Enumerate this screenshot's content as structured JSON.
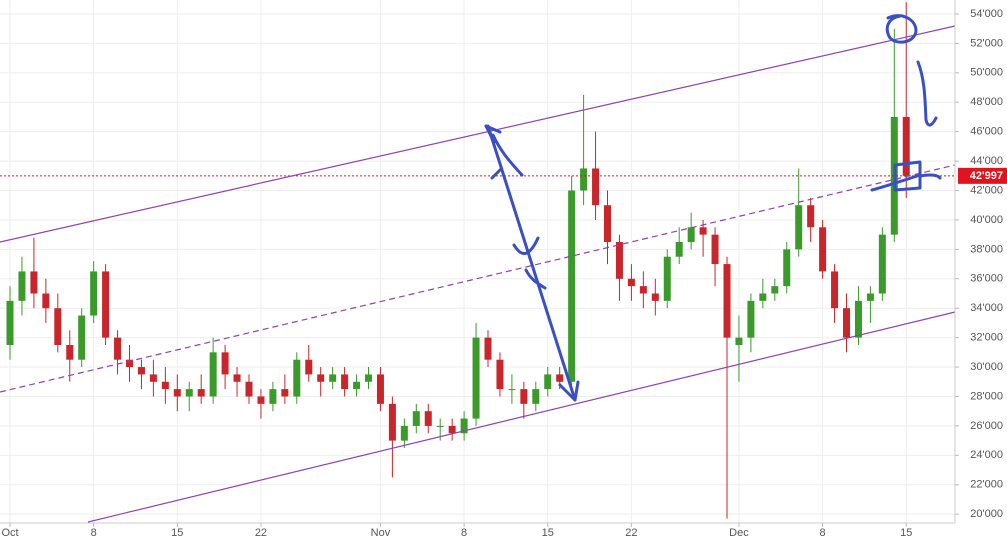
{
  "chart_data": {
    "type": "candlestick",
    "x": [
      "Oct 1",
      "Oct 2",
      "Oct 3",
      "Oct 4",
      "Oct 5",
      "Oct 6",
      "Oct 7",
      "Oct 8",
      "Oct 9",
      "Oct 10",
      "Oct 11",
      "Oct 12",
      "Oct 13",
      "Oct 14",
      "Oct 15",
      "Oct 16",
      "Oct 17",
      "Oct 18",
      "Oct 19",
      "Oct 20",
      "Oct 21",
      "Oct 22",
      "Oct 23",
      "Oct 24",
      "Oct 25",
      "Oct 26",
      "Oct 27",
      "Oct 28",
      "Oct 29",
      "Oct 30",
      "Oct 31",
      "Nov 1",
      "Nov 2",
      "Nov 3",
      "Nov 4",
      "Nov 5",
      "Nov 6",
      "Nov 7",
      "Nov 8",
      "Nov 9",
      "Nov 10",
      "Nov 11",
      "Nov 12",
      "Nov 13",
      "Nov 14",
      "Nov 15",
      "Nov 16",
      "Nov 17",
      "Nov 18",
      "Nov 19",
      "Nov 20",
      "Nov 21",
      "Nov 22",
      "Nov 23",
      "Nov 24",
      "Nov 25",
      "Nov 26",
      "Nov 27",
      "Nov 28",
      "Nov 29",
      "Nov 30",
      "Dec 1",
      "Dec 2",
      "Dec 3",
      "Dec 4",
      "Dec 5",
      "Dec 6",
      "Dec 7",
      "Dec 8",
      "Dec 9",
      "Dec 10",
      "Dec 11",
      "Dec 12",
      "Dec 13",
      "Dec 14",
      "Dec 15"
    ],
    "open": [
      31500,
      34500,
      36500,
      35000,
      34000,
      31500,
      30500,
      33500,
      36500,
      32000,
      30500,
      30000,
      29500,
      29000,
      28500,
      28000,
      28500,
      28000,
      31000,
      29500,
      29000,
      28000,
      27500,
      28500,
      28000,
      30500,
      29500,
      29000,
      29500,
      28500,
      29000,
      29500,
      27500,
      25000,
      26000,
      27000,
      26000,
      26000,
      25500,
      26500,
      32000,
      30500,
      28500,
      28500,
      27500,
      28500,
      29500,
      29000,
      42000,
      43500,
      41000,
      38500,
      36000,
      35500,
      35000,
      34500,
      37500,
      38500,
      39500,
      39000,
      37000,
      31500,
      32000,
      34500,
      35000,
      35500,
      38000,
      41000,
      39500,
      36500,
      34000,
      32000,
      34500,
      35000,
      39000,
      47000
    ],
    "high": [
      35500,
      37500,
      38800,
      36000,
      35000,
      32500,
      34000,
      37200,
      37000,
      32500,
      31500,
      30500,
      30500,
      30000,
      29500,
      29000,
      29500,
      32000,
      31500,
      30000,
      29500,
      28500,
      29000,
      29500,
      31000,
      31500,
      30000,
      30000,
      30000,
      29500,
      30000,
      30000,
      28000,
      26500,
      27500,
      27500,
      26500,
      26500,
      27000,
      33000,
      32500,
      31000,
      29500,
      29000,
      29000,
      30000,
      30000,
      43000,
      48500,
      46000,
      42000,
      39000,
      37000,
      36500,
      36000,
      38000,
      39500,
      40500,
      40000,
      39500,
      37500,
      33500,
      35000,
      36000,
      36000,
      38500,
      43500,
      41500,
      40000,
      37000,
      35000,
      35500,
      35500,
      39500,
      53000,
      54800
    ],
    "low": [
      30500,
      33500,
      34000,
      33000,
      31000,
      29000,
      30000,
      33000,
      31500,
      29500,
      29000,
      28500,
      28000,
      27500,
      27000,
      27000,
      27500,
      27500,
      28500,
      28000,
      27500,
      26500,
      27000,
      27500,
      27500,
      29000,
      28000,
      28500,
      28000,
      28000,
      28500,
      27000,
      22500,
      24500,
      25500,
      25500,
      25000,
      25000,
      25000,
      26000,
      30000,
      28000,
      27500,
      26500,
      27000,
      28000,
      28500,
      28500,
      41000,
      40000,
      37000,
      34500,
      34500,
      34000,
      33500,
      34000,
      37000,
      38000,
      37500,
      35500,
      19700,
      29000,
      31000,
      34000,
      34500,
      35000,
      37500,
      38500,
      36000,
      33000,
      31000,
      31500,
      33000,
      34500,
      38500,
      41500
    ],
    "close": [
      34500,
      36500,
      35000,
      34000,
      31500,
      30500,
      33500,
      36500,
      32000,
      30500,
      30000,
      29500,
      29000,
      28500,
      28000,
      28500,
      28000,
      31000,
      29500,
      29000,
      28000,
      27500,
      28500,
      28000,
      30500,
      29500,
      29000,
      29500,
      28500,
      29000,
      29500,
      27500,
      25000,
      26000,
      27000,
      26000,
      26000,
      25500,
      26500,
      32000,
      30500,
      28500,
      28500,
      27500,
      28500,
      29500,
      29000,
      42000,
      43500,
      41000,
      38500,
      36000,
      35500,
      35000,
      34500,
      37500,
      38500,
      39500,
      39000,
      37000,
      32000,
      32000,
      34500,
      35000,
      35500,
      38000,
      41000,
      39500,
      36500,
      34000,
      32000,
      34500,
      35000,
      39000,
      47000,
      43000
    ],
    "up_color": "#3a9a2a",
    "down_color": "#c8262a",
    "ylim": [
      19400,
      54950
    ],
    "yticks": [
      {
        "value": 20000,
        "label": "20'000"
      },
      {
        "value": 22000,
        "label": "22'000"
      },
      {
        "value": 24000,
        "label": "24'000"
      },
      {
        "value": 26000,
        "label": "26'000"
      },
      {
        "value": 28000,
        "label": "28'000"
      },
      {
        "value": 30000,
        "label": "30'000"
      },
      {
        "value": 32000,
        "label": "32'000"
      },
      {
        "value": 34000,
        "label": "34'000"
      },
      {
        "value": 36000,
        "label": "36'000"
      },
      {
        "value": 38000,
        "label": "38'000"
      },
      {
        "value": 40000,
        "label": "40'000"
      },
      {
        "value": 42000,
        "label": "42'000"
      },
      {
        "value": 44000,
        "label": "44'000"
      },
      {
        "value": 46000,
        "label": "46'000"
      },
      {
        "value": 48000,
        "label": "48'000"
      },
      {
        "value": 50000,
        "label": "50'000"
      },
      {
        "value": 52000,
        "label": "52'000"
      },
      {
        "value": 54000,
        "label": "54'000"
      }
    ],
    "xticks": [
      {
        "value": "Oct 1",
        "label": "Oct"
      },
      {
        "value": "Oct 8",
        "label": "8"
      },
      {
        "value": "Oct 15",
        "label": "15"
      },
      {
        "value": "Oct 22",
        "label": "22"
      },
      {
        "value": "Nov 1",
        "label": "Nov"
      },
      {
        "value": "Nov 8",
        "label": "8"
      },
      {
        "value": "Nov 15",
        "label": "15"
      },
      {
        "value": "Nov 22",
        "label": "22"
      },
      {
        "value": "Dec 1",
        "label": "Dec"
      },
      {
        "value": "Dec 8",
        "label": "8"
      },
      {
        "value": "Dec 15",
        "label": "15"
      }
    ],
    "last_price": {
      "value": 42997,
      "label": "42'997",
      "color": "#e0141e"
    },
    "grid": true
  }
}
